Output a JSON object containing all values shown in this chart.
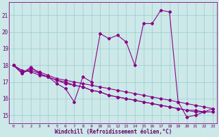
{
  "background_color": "#cce8e8",
  "grid_color": "#99cccc",
  "line_color": "#880088",
  "marker_color": "#880088",
  "xlabel": "Windchill (Refroidissement éolien,°C)",
  "xlim": [
    -0.5,
    23.5
  ],
  "ylim": [
    14.5,
    21.8
  ],
  "yticks": [
    15,
    16,
    17,
    18,
    19,
    20,
    21
  ],
  "xticks": [
    0,
    1,
    2,
    3,
    4,
    5,
    6,
    7,
    8,
    9,
    10,
    11,
    12,
    13,
    14,
    15,
    16,
    17,
    18,
    19,
    20,
    21,
    22,
    23
  ],
  "series": [
    [
      18.0,
      17.5,
      17.9,
      17.5,
      17.3,
      16.9,
      16.6,
      15.8,
      17.3,
      17.0,
      19.9,
      19.6,
      19.8,
      19.4,
      18.0,
      20.5,
      20.5,
      21.3,
      21.2,
      15.8,
      14.9,
      15.0,
      15.2,
      15.4
    ],
    [
      18.0,
      17.5,
      17.8,
      17.6,
      17.4,
      17.2,
      17.1,
      17.0,
      16.9,
      16.8,
      16.7,
      16.6,
      16.5,
      16.4,
      16.3,
      16.2,
      16.1,
      16.0,
      15.9,
      15.8,
      15.7,
      15.6,
      15.5,
      15.4
    ],
    [
      18.0,
      17.7,
      17.6,
      17.4,
      17.3,
      17.1,
      16.9,
      16.8,
      16.7,
      16.5,
      16.4,
      16.2,
      16.1,
      16.0,
      15.9,
      15.8,
      15.7,
      15.6,
      15.5,
      15.4,
      15.3,
      15.3,
      15.2,
      15.2
    ],
    [
      18.0,
      17.6,
      17.7,
      17.5,
      17.3,
      17.1,
      17.0,
      16.8,
      16.7,
      16.5,
      16.4,
      16.2,
      16.1,
      16.0,
      15.9,
      15.8,
      15.7,
      15.6,
      15.5,
      15.4,
      15.3,
      15.2,
      15.2,
      15.2
    ]
  ],
  "figsize": [
    3.2,
    2.0
  ],
  "dpi": 100
}
